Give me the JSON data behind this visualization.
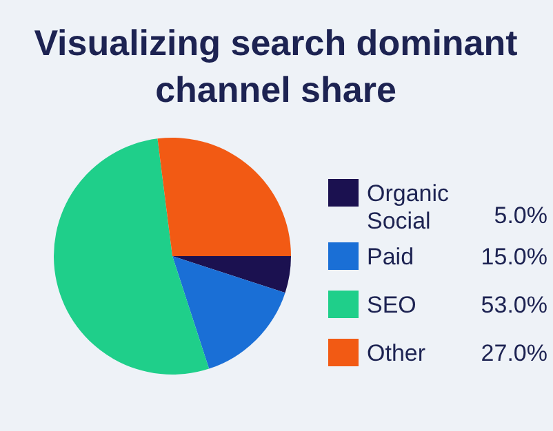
{
  "chart_data": {
    "type": "pie",
    "title": "Visualizing search dominant channel share",
    "categories": [
      "Organic Social",
      "Paid",
      "SEO",
      "Other"
    ],
    "values": [
      5,
      15,
      53,
      27
    ],
    "colors": [
      "#1b1150",
      "#1a6fd6",
      "#1fcf8a",
      "#f25a14"
    ],
    "value_labels": [
      "5.0%",
      "15.0%",
      "53.0%",
      "27.0%"
    ],
    "legend": "right"
  }
}
